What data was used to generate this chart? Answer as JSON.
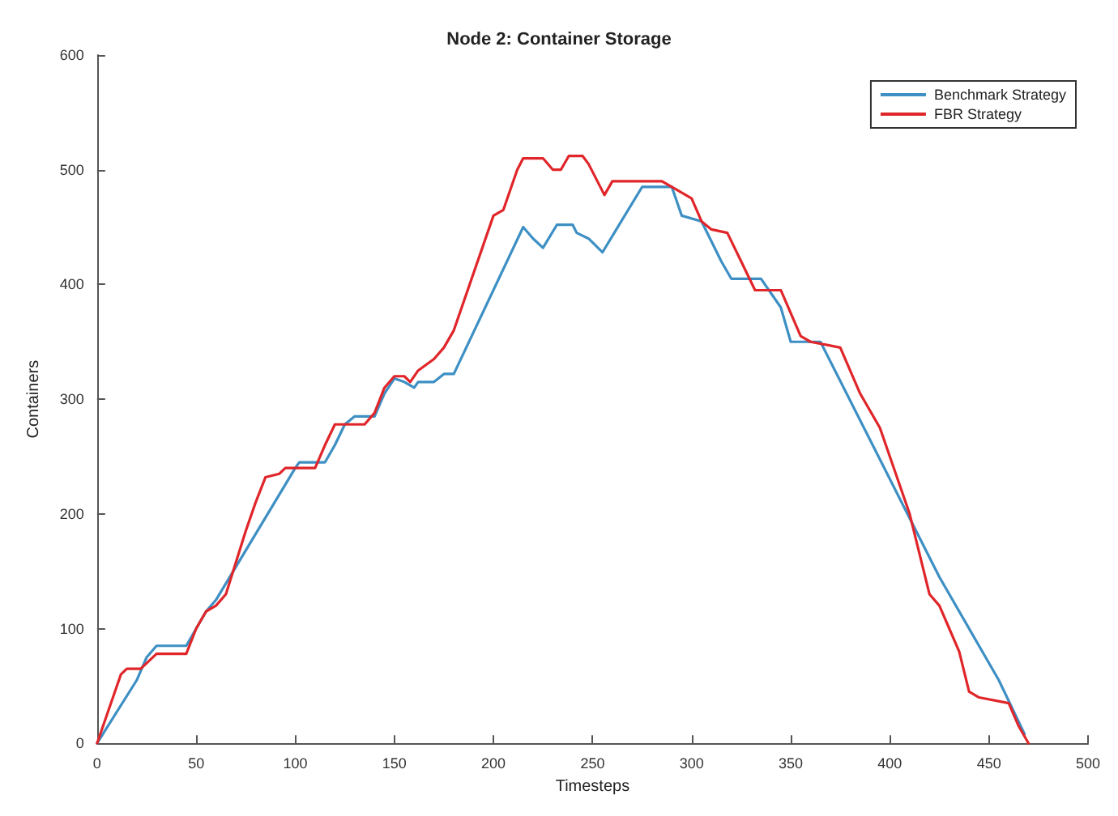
{
  "chart_data": {
    "type": "line",
    "title": "Node 2: Container Storage",
    "xlabel": "Timesteps",
    "ylabel": "Containers",
    "xlim": [
      0,
      500
    ],
    "xticks": [
      0,
      50,
      100,
      150,
      200,
      250,
      300,
      350,
      400,
      450,
      500
    ],
    "ylim": [
      0,
      600
    ],
    "yticks": [
      0,
      100,
      200,
      300,
      400,
      500,
      600
    ],
    "grid": false,
    "legend": "top right",
    "marker": "none",
    "line_style": "solid",
    "series": [
      {
        "name": "Benchmark Strategy",
        "color": "#3d8fc4",
        "x": [
          0,
          20,
          25,
          30,
          45,
          50,
          55,
          60,
          100,
          102,
          115,
          120,
          125,
          130,
          140,
          145,
          150,
          155,
          160,
          162,
          170,
          175,
          180,
          215,
          220,
          225,
          232,
          240,
          242,
          248,
          255,
          275,
          290,
          295,
          305,
          315,
          320,
          335,
          345,
          350,
          365,
          425,
          455,
          468
        ],
        "values": [
          0,
          55,
          75,
          85,
          85,
          100,
          115,
          125,
          240,
          245,
          245,
          260,
          278,
          285,
          285,
          305,
          318,
          315,
          310,
          315,
          315,
          322,
          322,
          450,
          440,
          432,
          452,
          452,
          445,
          440,
          428,
          485,
          485,
          460,
          455,
          420,
          405,
          405,
          380,
          350,
          350,
          145,
          55,
          8
        ]
      },
      {
        "name": "FBR Strategy",
        "color": "#e0262a",
        "x": [
          0,
          5,
          12,
          15,
          22,
          30,
          45,
          50,
          55,
          60,
          65,
          75,
          80,
          85,
          92,
          95,
          110,
          115,
          120,
          135,
          140,
          145,
          150,
          155,
          158,
          162,
          170,
          175,
          180,
          200,
          205,
          208,
          212,
          215,
          225,
          230,
          234,
          238,
          245,
          248,
          256,
          260,
          285,
          290,
          300,
          305,
          310,
          318,
          325,
          332,
          345,
          355,
          360,
          375,
          385,
          395,
          410,
          420,
          425,
          430,
          435,
          440,
          445,
          460,
          465,
          470
        ],
        "values": [
          0,
          25,
          60,
          65,
          65,
          78,
          78,
          100,
          115,
          120,
          130,
          185,
          210,
          232,
          235,
          240,
          240,
          260,
          278,
          278,
          288,
          310,
          320,
          320,
          315,
          325,
          335,
          345,
          360,
          460,
          465,
          480,
          500,
          510,
          510,
          500,
          500,
          512,
          512,
          505,
          478,
          490,
          490,
          485,
          475,
          455,
          448,
          445,
          420,
          395,
          395,
          355,
          350,
          345,
          305,
          275,
          200,
          130,
          120,
          100,
          80,
          45,
          40,
          35,
          15,
          0
        ]
      }
    ]
  }
}
